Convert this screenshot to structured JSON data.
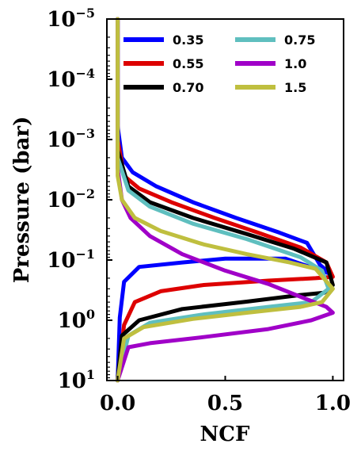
{
  "chart_data": {
    "type": "line",
    "title": "",
    "xlabel": "NCF",
    "ylabel": "Pressure (bar)",
    "xlim": [
      -0.05,
      1.05
    ],
    "ylim": [
      10,
      1e-05
    ],
    "y_scale": "log",
    "y_inverted": true,
    "grid": false,
    "legend_position": "top",
    "x_ticks": [
      {
        "value": 0.0,
        "label": "0.0"
      },
      {
        "value": 0.5,
        "label": "0.5"
      },
      {
        "value": 1.0,
        "label": "1.0"
      }
    ],
    "y_ticks": [
      {
        "value": 1e-05,
        "base": "10",
        "exp": "−5"
      },
      {
        "value": 0.0001,
        "base": "10",
        "exp": "−4"
      },
      {
        "value": 0.001,
        "base": "10",
        "exp": "−3"
      },
      {
        "value": 0.01,
        "base": "10",
        "exp": "−2"
      },
      {
        "value": 0.1,
        "base": "10",
        "exp": "−1"
      },
      {
        "value": 1,
        "base": "10",
        "exp": "0"
      },
      {
        "value": 10,
        "base": "10",
        "exp": "1"
      }
    ],
    "series": [
      {
        "name": "0.35",
        "color": "#0000ff",
        "points": [
          [
            0.0,
            1e-05
          ],
          [
            0.0,
            0.0006
          ],
          [
            0.02,
            0.002
          ],
          [
            0.07,
            0.0035
          ],
          [
            0.18,
            0.006
          ],
          [
            0.35,
            0.011
          ],
          [
            0.55,
            0.02
          ],
          [
            0.75,
            0.035
          ],
          [
            0.88,
            0.052
          ],
          [
            0.94,
            0.12
          ],
          [
            0.99,
            0.17
          ],
          [
            0.78,
            0.095
          ],
          [
            0.5,
            0.095
          ],
          [
            0.3,
            0.11
          ],
          [
            0.1,
            0.13
          ],
          [
            0.03,
            0.23
          ],
          [
            0.01,
            0.9
          ],
          [
            0.0,
            10
          ]
        ]
      },
      {
        "name": "0.55",
        "color": "#dd0000",
        "points": [
          [
            0.0,
            1e-05
          ],
          [
            0.0,
            0.001
          ],
          [
            0.03,
            0.004
          ],
          [
            0.1,
            0.0065
          ],
          [
            0.25,
            0.011
          ],
          [
            0.45,
            0.02
          ],
          [
            0.65,
            0.035
          ],
          [
            0.85,
            0.062
          ],
          [
            0.97,
            0.11
          ],
          [
            1.0,
            0.19
          ],
          [
            0.92,
            0.2
          ],
          [
            0.7,
            0.22
          ],
          [
            0.4,
            0.26
          ],
          [
            0.2,
            0.33
          ],
          [
            0.08,
            0.5
          ],
          [
            0.03,
            1.2
          ],
          [
            0.0,
            10
          ]
        ]
      },
      {
        "name": "0.70",
        "color": "#000000",
        "points": [
          [
            0.0,
            1e-05
          ],
          [
            0.0,
            0.0015
          ],
          [
            0.05,
            0.006
          ],
          [
            0.15,
            0.011
          ],
          [
            0.35,
            0.02
          ],
          [
            0.6,
            0.037
          ],
          [
            0.82,
            0.065
          ],
          [
            0.97,
            0.11
          ],
          [
            1.0,
            0.26
          ],
          [
            0.96,
            0.35
          ],
          [
            0.85,
            0.38
          ],
          [
            0.6,
            0.49
          ],
          [
            0.3,
            0.65
          ],
          [
            0.1,
            1.0
          ],
          [
            0.02,
            1.8
          ],
          [
            0.0,
            10
          ]
        ]
      },
      {
        "name": "0.75",
        "color": "#5fbfbf",
        "points": [
          [
            0.0,
            1e-05
          ],
          [
            0.0,
            0.002
          ],
          [
            0.05,
            0.007
          ],
          [
            0.15,
            0.013
          ],
          [
            0.35,
            0.025
          ],
          [
            0.6,
            0.045
          ],
          [
            0.85,
            0.09
          ],
          [
            0.95,
            0.15
          ],
          [
            0.98,
            0.3
          ],
          [
            0.9,
            0.5
          ],
          [
            0.7,
            0.6
          ],
          [
            0.4,
            0.8
          ],
          [
            0.15,
            1.1
          ],
          [
            0.05,
            1.8
          ],
          [
            0.0,
            10
          ]
        ]
      },
      {
        "name": "1.0",
        "color": "#a000c8",
        "points": [
          [
            0.0,
            1e-05
          ],
          [
            0.0,
            0.003
          ],
          [
            0.02,
            0.01
          ],
          [
            0.06,
            0.02
          ],
          [
            0.15,
            0.04
          ],
          [
            0.3,
            0.08
          ],
          [
            0.5,
            0.15
          ],
          [
            0.7,
            0.25
          ],
          [
            0.88,
            0.45
          ],
          [
            0.97,
            0.6
          ],
          [
            1.0,
            0.75
          ],
          [
            0.9,
            1.0
          ],
          [
            0.7,
            1.4
          ],
          [
            0.4,
            1.9
          ],
          [
            0.15,
            2.4
          ],
          [
            0.05,
            2.8
          ],
          [
            0.0,
            10
          ]
        ]
      },
      {
        "name": "1.5",
        "color": "#bfbf3f",
        "points": [
          [
            0.0,
            1e-05
          ],
          [
            0.0,
            0.004
          ],
          [
            0.02,
            0.01
          ],
          [
            0.08,
            0.02
          ],
          [
            0.2,
            0.033
          ],
          [
            0.4,
            0.055
          ],
          [
            0.6,
            0.08
          ],
          [
            0.8,
            0.11
          ],
          [
            0.92,
            0.14
          ],
          [
            1.0,
            0.3
          ],
          [
            0.95,
            0.5
          ],
          [
            0.85,
            0.6
          ],
          [
            0.6,
            0.75
          ],
          [
            0.35,
            0.95
          ],
          [
            0.12,
            1.3
          ],
          [
            0.03,
            2.0
          ],
          [
            0.0,
            10
          ]
        ]
      }
    ]
  }
}
